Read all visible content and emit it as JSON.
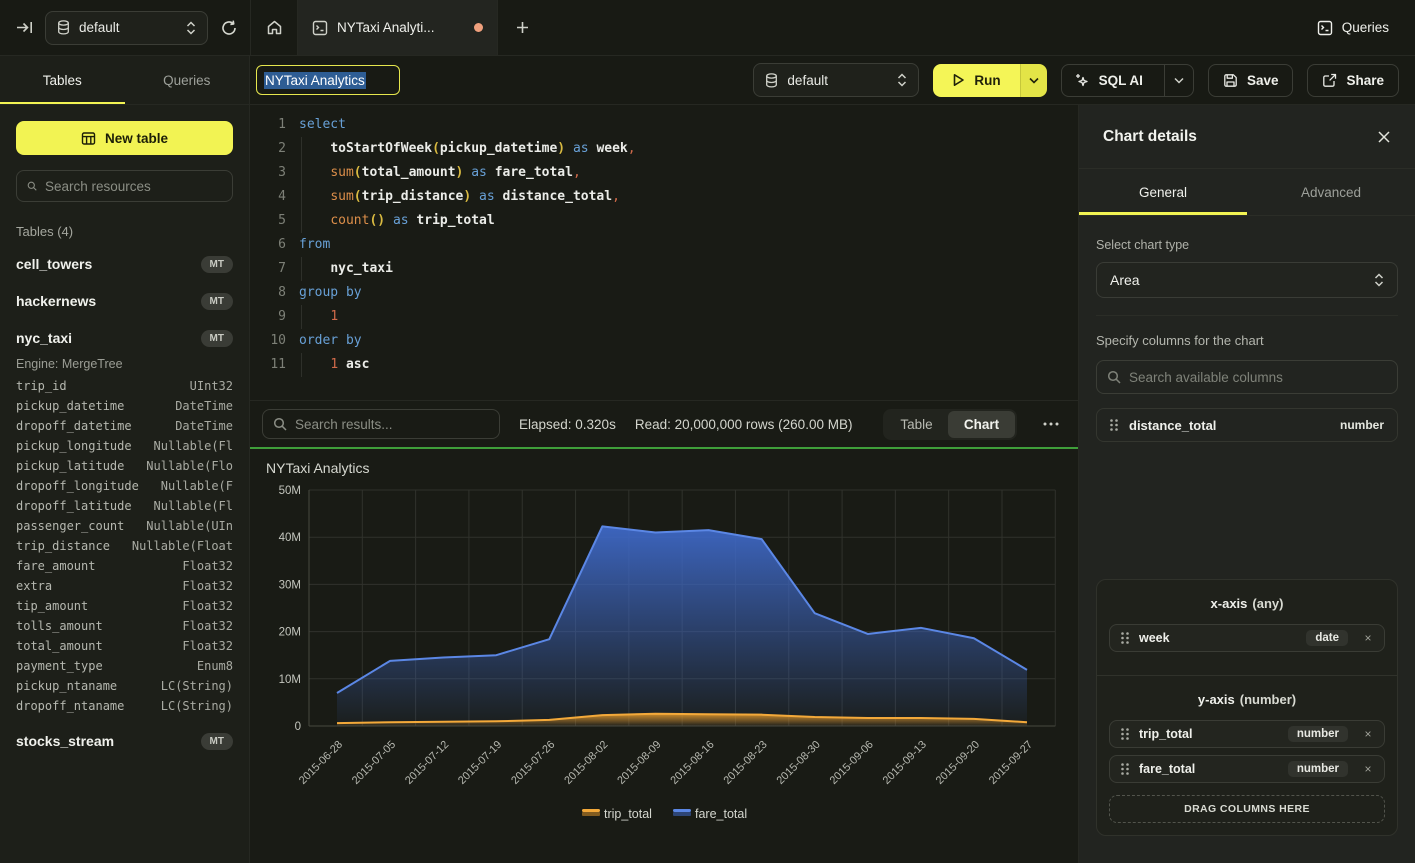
{
  "topbar": {
    "database_label": "default",
    "tab_title": "NYTaxi Analyti...",
    "queries_label": "Queries"
  },
  "sidebar": {
    "tabs": [
      {
        "label": "Tables"
      },
      {
        "label": "Queries"
      }
    ],
    "new_table_label": "New table",
    "search_placeholder": "Search resources",
    "tables_header": "Tables (4)",
    "tables": [
      {
        "name": "cell_towers",
        "badge": "MT"
      },
      {
        "name": "hackernews",
        "badge": "MT"
      },
      {
        "name": "nyc_taxi",
        "badge": "MT",
        "engine": "Engine: MergeTree",
        "columns": [
          {
            "name": "trip_id",
            "type": "UInt32"
          },
          {
            "name": "pickup_datetime",
            "type": "DateTime"
          },
          {
            "name": "dropoff_datetime",
            "type": "DateTime"
          },
          {
            "name": "pickup_longitude",
            "type": "Nullable(Fl"
          },
          {
            "name": "pickup_latitude",
            "type": "Nullable(Flo"
          },
          {
            "name": "dropoff_longitude",
            "type": "Nullable(F"
          },
          {
            "name": "dropoff_latitude",
            "type": "Nullable(Fl"
          },
          {
            "name": "passenger_count",
            "type": "Nullable(UIn"
          },
          {
            "name": "trip_distance",
            "type": "Nullable(Float"
          },
          {
            "name": "fare_amount",
            "type": "Float32"
          },
          {
            "name": "extra",
            "type": "Float32"
          },
          {
            "name": "tip_amount",
            "type": "Float32"
          },
          {
            "name": "tolls_amount",
            "type": "Float32"
          },
          {
            "name": "total_amount",
            "type": "Float32"
          },
          {
            "name": "payment_type",
            "type": "Enum8"
          },
          {
            "name": "pickup_ntaname",
            "type": "LC(String)"
          },
          {
            "name": "dropoff_ntaname",
            "type": "LC(String)"
          }
        ]
      },
      {
        "name": "stocks_stream",
        "badge": "MT"
      }
    ]
  },
  "toolbar": {
    "title_value": "NYTaxi Analytics",
    "database_label": "default",
    "run_label": "Run",
    "sql_ai_label": "SQL AI",
    "save_label": "Save",
    "share_label": "Share"
  },
  "editor": {
    "lines": [
      {
        "n": "1",
        "guide": false,
        "tokens": [
          [
            "kw",
            "select"
          ]
        ]
      },
      {
        "n": "2",
        "guide": true,
        "tokens": [
          [
            "ws",
            "    "
          ],
          [
            "id",
            "toStartOfWeek"
          ],
          [
            "pa",
            "("
          ],
          [
            "id",
            "pickup_datetime"
          ],
          [
            "pa",
            ")"
          ],
          [
            "ws",
            " "
          ],
          [
            "kw",
            "as"
          ],
          [
            "ws",
            " "
          ],
          [
            "id",
            "week"
          ],
          [
            "pn",
            ","
          ]
        ]
      },
      {
        "n": "3",
        "guide": true,
        "tokens": [
          [
            "ws",
            "    "
          ],
          [
            "fn",
            "sum"
          ],
          [
            "pa",
            "("
          ],
          [
            "id",
            "total_amount"
          ],
          [
            "pa",
            ")"
          ],
          [
            "ws",
            " "
          ],
          [
            "kw",
            "as"
          ],
          [
            "ws",
            " "
          ],
          [
            "id",
            "fare_total"
          ],
          [
            "pn",
            ","
          ]
        ]
      },
      {
        "n": "4",
        "guide": true,
        "tokens": [
          [
            "ws",
            "    "
          ],
          [
            "fn",
            "sum"
          ],
          [
            "pa",
            "("
          ],
          [
            "id",
            "trip_distance"
          ],
          [
            "pa",
            ")"
          ],
          [
            "ws",
            " "
          ],
          [
            "kw",
            "as"
          ],
          [
            "ws",
            " "
          ],
          [
            "id",
            "distance_total"
          ],
          [
            "pn",
            ","
          ]
        ]
      },
      {
        "n": "5",
        "guide": true,
        "tokens": [
          [
            "ws",
            "    "
          ],
          [
            "fn",
            "count"
          ],
          [
            "pa",
            "("
          ],
          [
            "pa",
            ")"
          ],
          [
            "ws",
            " "
          ],
          [
            "kw",
            "as"
          ],
          [
            "ws",
            " "
          ],
          [
            "id",
            "trip_total"
          ]
        ]
      },
      {
        "n": "6",
        "guide": false,
        "tokens": [
          [
            "kw",
            "from"
          ]
        ]
      },
      {
        "n": "7",
        "guide": true,
        "tokens": [
          [
            "ws",
            "    "
          ],
          [
            "id",
            "nyc_taxi"
          ]
        ]
      },
      {
        "n": "8",
        "guide": false,
        "tokens": [
          [
            "kw",
            "group by"
          ]
        ]
      },
      {
        "n": "9",
        "guide": true,
        "tokens": [
          [
            "ws",
            "    "
          ],
          [
            "pn",
            "1"
          ]
        ]
      },
      {
        "n": "10",
        "guide": false,
        "tokens": [
          [
            "kw",
            "order by"
          ]
        ]
      },
      {
        "n": "11",
        "guide": true,
        "tokens": [
          [
            "ws",
            "    "
          ],
          [
            "pn",
            "1"
          ],
          [
            "ws",
            " "
          ],
          [
            "id",
            "asc"
          ]
        ]
      }
    ]
  },
  "results": {
    "search_placeholder": "Search results...",
    "elapsed": "Elapsed: 0.320s",
    "read": "Read: 20,000,000 rows (260.00 MB)",
    "views": [
      {
        "label": "Table"
      },
      {
        "label": "Chart"
      }
    ],
    "active_view": "Chart"
  },
  "chart_data": {
    "type": "area",
    "title": "NYTaxi Analytics",
    "x": [
      "2015-06-28",
      "2015-07-05",
      "2015-07-12",
      "2015-07-19",
      "2015-07-26",
      "2015-08-02",
      "2015-08-09",
      "2015-08-16",
      "2015-08-23",
      "2015-08-30",
      "2015-09-06",
      "2015-09-13",
      "2015-09-20",
      "2015-09-27"
    ],
    "series": [
      {
        "name": "trip_total",
        "color_line": "#f3a93a",
        "color_fill": "#d8922a",
        "values_millions": [
          0.6,
          0.8,
          0.9,
          1.0,
          1.3,
          2.3,
          2.6,
          2.5,
          2.4,
          1.9,
          1.7,
          1.7,
          1.5,
          0.8
        ]
      },
      {
        "name": "fare_total",
        "color_line": "#5b87e5",
        "color_fill": "#3e68c6",
        "values_millions": [
          7.0,
          13.8,
          14.5,
          15.0,
          18.4,
          42.3,
          41.0,
          41.5,
          39.6,
          23.9,
          19.5,
          20.8,
          18.6,
          11.9
        ]
      }
    ],
    "ylim_millions": [
      0,
      50
    ],
    "yticks": [
      "0",
      "10M",
      "20M",
      "30M",
      "40M",
      "50M"
    ],
    "grid": true,
    "legend_position": "bottom",
    "xlabel": "",
    "ylabel": ""
  },
  "chart_panel": {
    "title": "Chart details",
    "tabs": [
      {
        "label": "General"
      },
      {
        "label": "Advanced"
      }
    ],
    "chart_type_label": "Select chart type",
    "chart_type_value": "Area",
    "columns_label": "Specify columns for the chart",
    "columns_search_placeholder": "Search available columns",
    "available_columns": [
      {
        "name": "distance_total",
        "type": "number"
      }
    ],
    "x_axis": {
      "label": "x-axis",
      "hint": "(any)",
      "items": [
        {
          "name": "week",
          "type": "date"
        }
      ]
    },
    "y_axis": {
      "label": "y-axis",
      "hint": "(number)",
      "items": [
        {
          "name": "trip_total",
          "type": "number"
        },
        {
          "name": "fare_total",
          "type": "number"
        }
      ]
    },
    "drop_label": "DRAG COLUMNS HERE"
  }
}
